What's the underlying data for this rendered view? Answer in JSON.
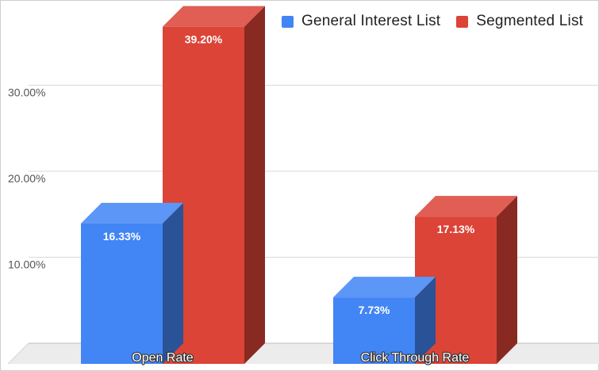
{
  "chart_data": {
    "type": "bar",
    "style": "3d",
    "categories": [
      "Open Rate",
      "Click Through Rate"
    ],
    "series": [
      {
        "name": "General Interest List",
        "color": "#4285f4",
        "values": [
          16.33,
          7.73
        ],
        "labels": [
          "16.33%",
          "7.73%"
        ]
      },
      {
        "name": "Segmented List",
        "color": "#db4437",
        "values": [
          39.2,
          17.13
        ],
        "labels": [
          "39.20%",
          "17.13%"
        ]
      }
    ],
    "y_ticks": [
      {
        "value": 10,
        "label": "10.00%"
      },
      {
        "value": 20,
        "label": "20.00%"
      },
      {
        "value": 30,
        "label": "30.00%"
      }
    ],
    "ylim": [
      0,
      40
    ],
    "grid": true,
    "legend_position": "top-right",
    "title": "",
    "xlabel": "",
    "ylabel": ""
  }
}
